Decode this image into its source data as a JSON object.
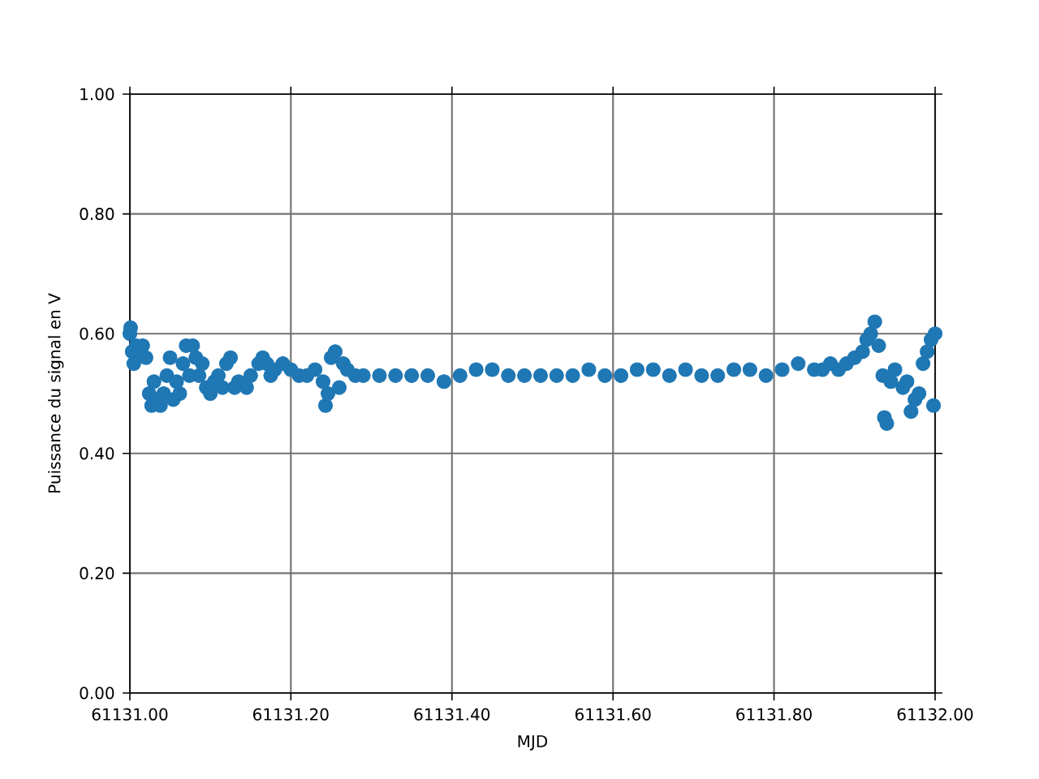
{
  "chart_data": {
    "type": "scatter",
    "xlabel": "MJD",
    "ylabel": "Puissance du signal en V",
    "color": "#1f77b4",
    "grid": true,
    "xlim": [
      61131.0,
      61132.0
    ],
    "ylim": [
      0,
      1
    ],
    "xticks": [
      {
        "value": 61131.0,
        "label": "61131.00"
      },
      {
        "value": 61131.2,
        "label": "61131.20"
      },
      {
        "value": 61131.4,
        "label": "61131.40"
      },
      {
        "value": 61131.6,
        "label": "61131.60"
      },
      {
        "value": 61131.8,
        "label": "61131.80"
      },
      {
        "value": 61132.0,
        "label": "61132.00"
      }
    ],
    "yticks": [
      {
        "value": 0,
        "label": "0.00"
      },
      {
        "value": 0.2,
        "label": "0.20"
      },
      {
        "value": 0.4,
        "label": "0.40"
      },
      {
        "value": 0.6,
        "label": "0.60"
      },
      {
        "value": 0.8,
        "label": "0.80"
      },
      {
        "value": 1,
        "label": "1.00"
      }
    ],
    "x": [
      61131.0,
      61131.001,
      61131.003,
      61131.005,
      61131.008,
      61131.012,
      61131.016,
      61131.02,
      61131.024,
      61131.027,
      61131.03,
      61131.034,
      61131.038,
      61131.042,
      61131.046,
      61131.05,
      61131.054,
      61131.058,
      61131.062,
      61131.066,
      61131.07,
      61131.074,
      61131.078,
      61131.082,
      61131.086,
      61131.09,
      61131.095,
      61131.1,
      61131.105,
      61131.11,
      61131.115,
      61131.12,
      61131.125,
      61131.13,
      61131.135,
      61131.145,
      61131.15,
      61131.16,
      61131.165,
      61131.17,
      61131.175,
      61131.18,
      61131.19,
      61131.2,
      61131.21,
      61131.22,
      61131.23,
      61131.24,
      61131.243,
      61131.246,
      61131.25,
      61131.255,
      61131.26,
      61131.265,
      61131.27,
      61131.28,
      61131.29,
      61131.31,
      61131.33,
      61131.35,
      61131.37,
      61131.39,
      61131.41,
      61131.43,
      61131.45,
      61131.47,
      61131.49,
      61131.51,
      61131.53,
      61131.55,
      61131.57,
      61131.59,
      61131.61,
      61131.63,
      61131.65,
      61131.67,
      61131.69,
      61131.71,
      61131.73,
      61131.75,
      61131.77,
      61131.79,
      61131.81,
      61131.83,
      61131.85,
      61131.86,
      61131.87,
      61131.88,
      61131.89,
      61131.9,
      61131.91,
      61131.915,
      61131.92,
      61131.925,
      61131.93,
      61131.935,
      61131.937,
      61131.94,
      61131.945,
      61131.95,
      61131.96,
      61131.965,
      61131.97,
      61131.975,
      61131.98,
      61131.985,
      61131.99,
      61131.995,
      61131.998,
      61132.0
    ],
    "values": [
      0.6,
      0.61,
      0.57,
      0.55,
      0.58,
      0.57,
      0.58,
      0.56,
      0.5,
      0.48,
      0.52,
      0.49,
      0.48,
      0.5,
      0.53,
      0.56,
      0.49,
      0.52,
      0.5,
      0.55,
      0.58,
      0.53,
      0.58,
      0.56,
      0.53,
      0.55,
      0.51,
      0.5,
      0.52,
      0.53,
      0.51,
      0.55,
      0.56,
      0.51,
      0.52,
      0.51,
      0.53,
      0.55,
      0.56,
      0.55,
      0.53,
      0.54,
      0.55,
      0.54,
      0.53,
      0.53,
      0.54,
      0.52,
      0.48,
      0.5,
      0.56,
      0.57,
      0.51,
      0.55,
      0.54,
      0.53,
      0.53,
      0.53,
      0.53,
      0.53,
      0.53,
      0.52,
      0.53,
      0.54,
      0.54,
      0.53,
      0.53,
      0.53,
      0.53,
      0.53,
      0.54,
      0.53,
      0.53,
      0.54,
      0.54,
      0.53,
      0.54,
      0.53,
      0.53,
      0.54,
      0.54,
      0.53,
      0.54,
      0.55,
      0.54,
      0.54,
      0.55,
      0.54,
      0.55,
      0.56,
      0.57,
      0.59,
      0.6,
      0.62,
      0.58,
      0.53,
      0.46,
      0.45,
      0.52,
      0.54,
      0.51,
      0.52,
      0.47,
      0.49,
      0.5,
      0.55,
      0.57,
      0.59,
      0.48,
      0.6
    ]
  }
}
